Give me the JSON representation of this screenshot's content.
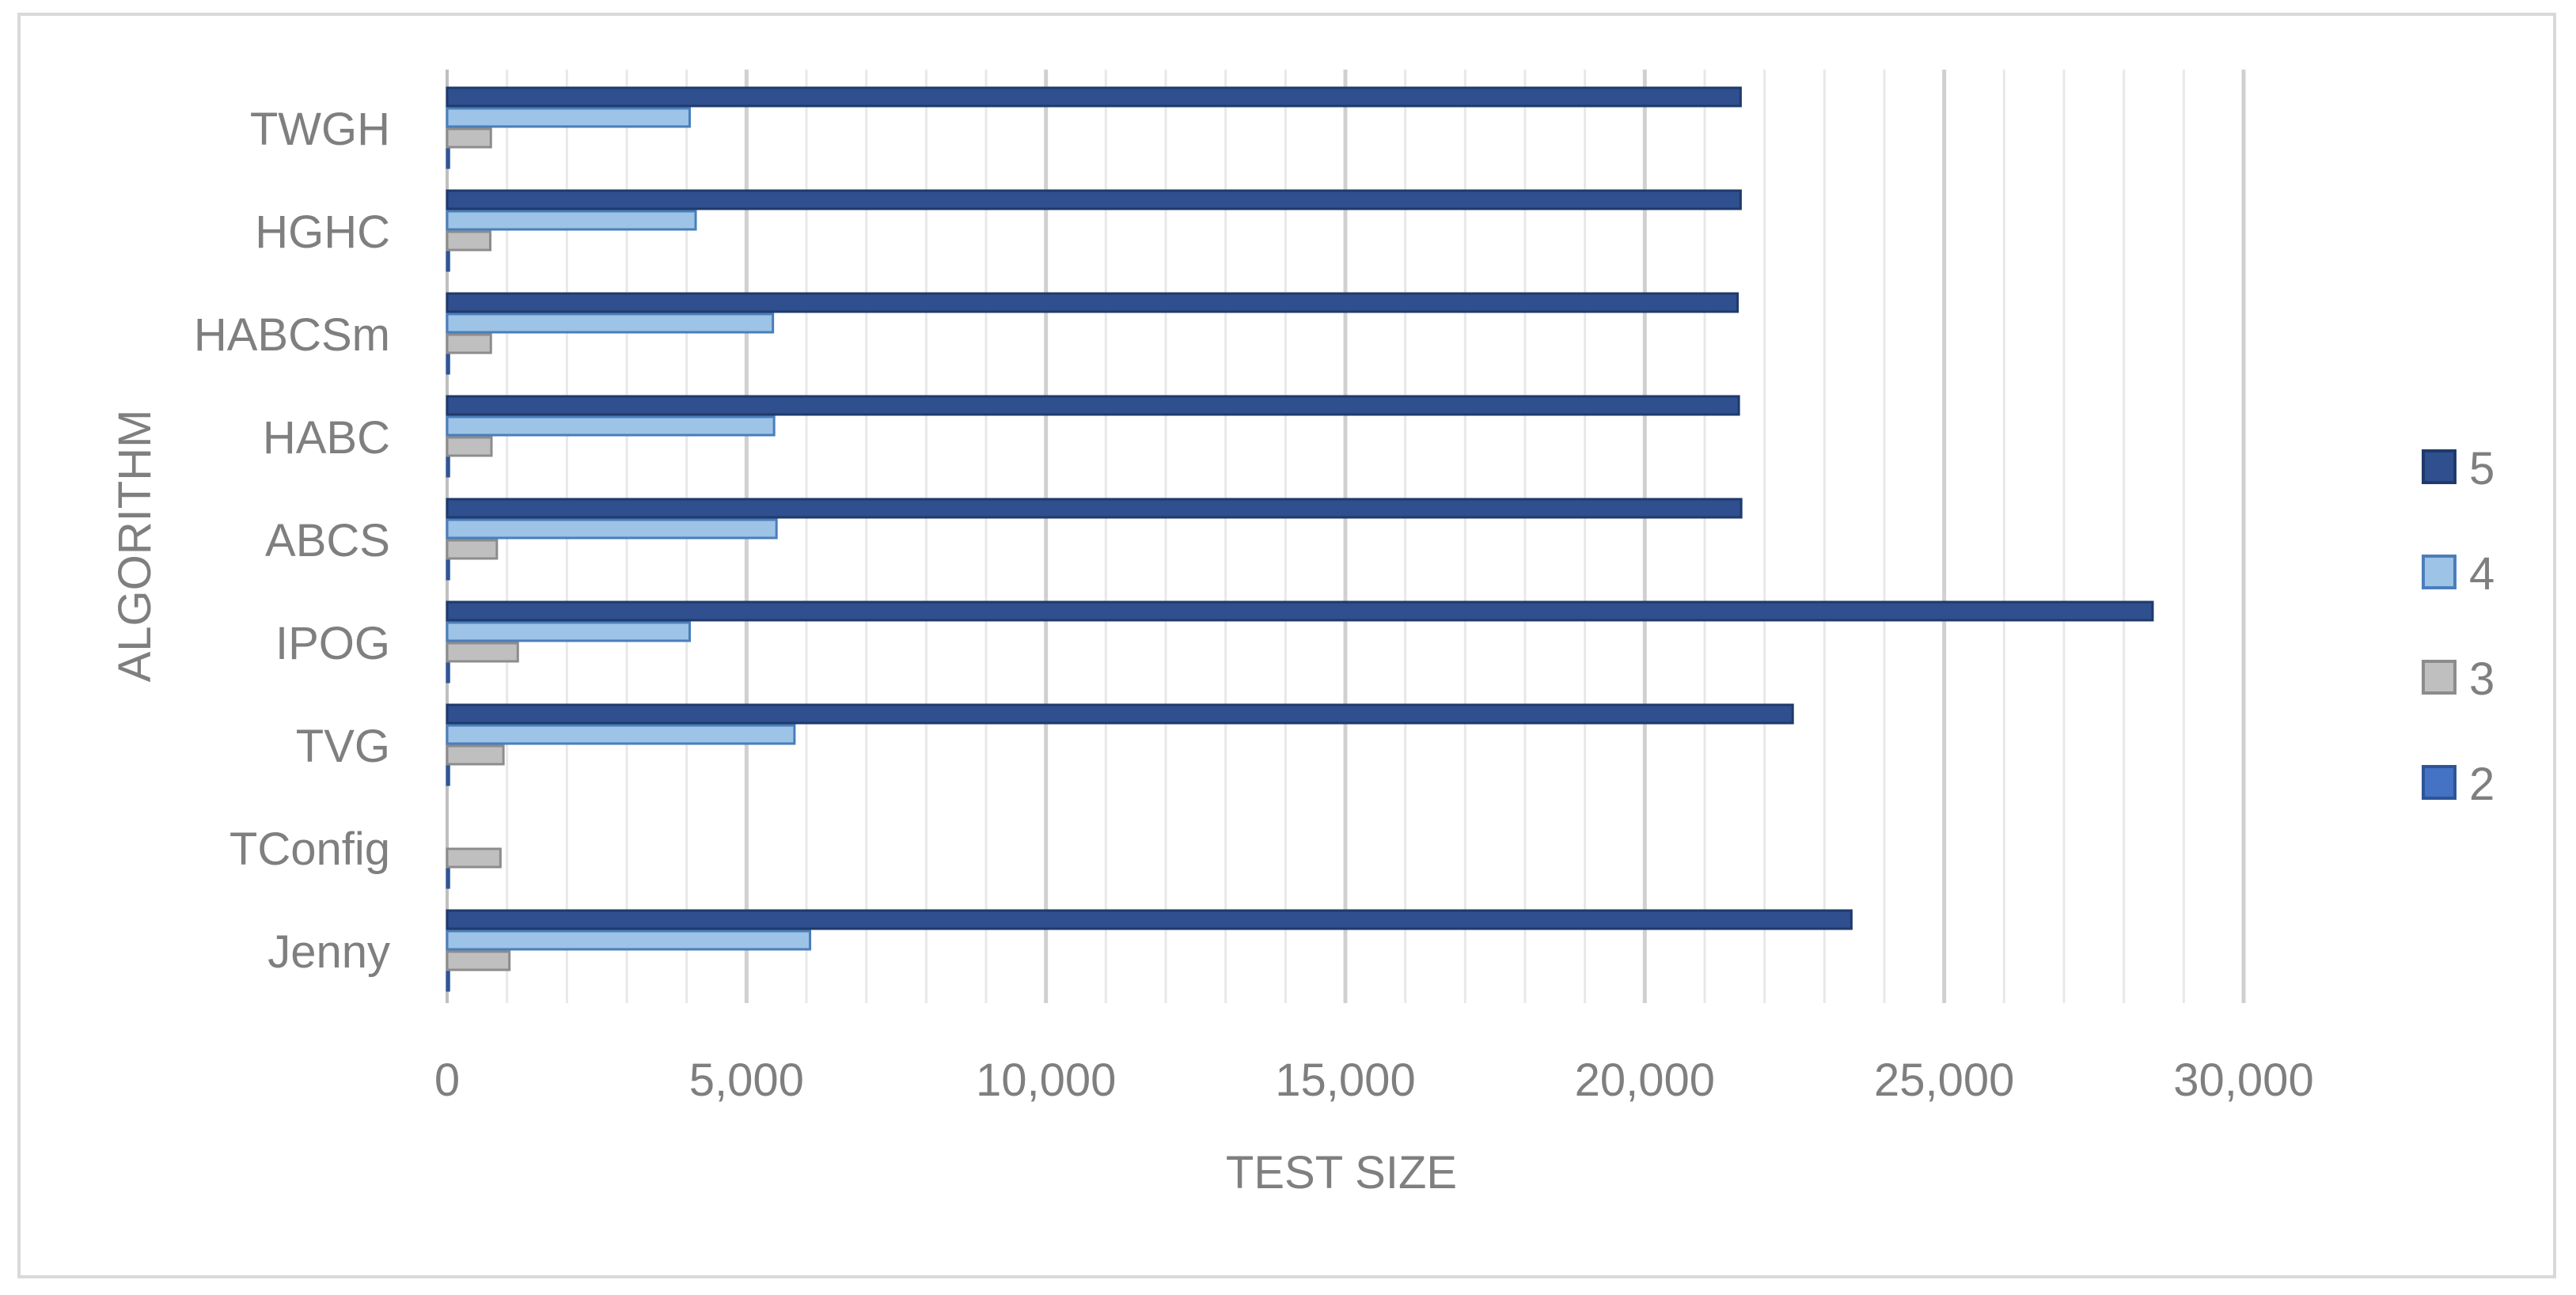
{
  "chart_data": {
    "type": "bar",
    "orientation": "horizontal",
    "categories": [
      "TWGH",
      "HGHC",
      "HABCSm",
      "HABC",
      "ABCS",
      "IPOG",
      "TVG",
      "TConfig",
      "Jenny"
    ],
    "series": [
      {
        "name": "5",
        "color": "#2f4f8f",
        "values": [
          21600,
          21600,
          21550,
          21570,
          21610,
          28480,
          22470,
          0,
          23450
        ]
      },
      {
        "name": "4",
        "color": "#9dc3e6",
        "values": [
          4050,
          4150,
          5440,
          5460,
          5500,
          4050,
          5800,
          0,
          6060
        ]
      },
      {
        "name": "3",
        "color": "#bfbfbf",
        "values": [
          730,
          720,
          730,
          740,
          830,
          1180,
          940,
          890,
          1040
        ]
      },
      {
        "name": "2",
        "color": "#4472c4",
        "values": [
          30,
          30,
          30,
          30,
          30,
          30,
          30,
          30,
          30
        ]
      }
    ],
    "xlim": [
      0,
      30000
    ],
    "xticks": [
      "0",
      "5,000",
      "10,000",
      "15,000",
      "20,000",
      "25,000",
      "30,000"
    ],
    "xlabel": "TEST SIZE",
    "ylabel": "ALGORITHM",
    "grid": "vertical major and minor",
    "legend": {
      "position": "right",
      "order": [
        "5",
        "4",
        "3",
        "2"
      ]
    }
  }
}
